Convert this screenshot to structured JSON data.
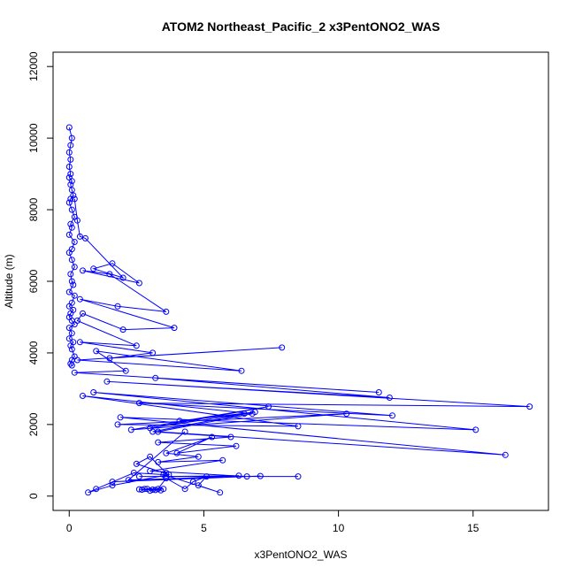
{
  "chart_data": {
    "type": "line",
    "title": "ATOM2 Northeast_Pacific_2 x3PentONO2_WAS",
    "xlabel": "x3PentONO2_WAS",
    "ylabel": "Altitude (m)",
    "xlim": [
      -0.6,
      17.8
    ],
    "ylim": [
      -400,
      12400
    ],
    "xticks": [
      0,
      5,
      10,
      15
    ],
    "yticks": [
      0,
      2000,
      4000,
      6000,
      8000,
      10000,
      12000
    ],
    "grid": false,
    "legend": "none",
    "color": "#0000ff",
    "series": [
      {
        "points": [
          [
            0.0,
            10300
          ],
          [
            0.1,
            10000
          ],
          [
            0.05,
            9800
          ],
          [
            0.0,
            9600
          ],
          [
            0.05,
            9400
          ],
          [
            0.0,
            9200
          ],
          [
            0.05,
            9000
          ],
          [
            0.0,
            8900
          ],
          [
            0.1,
            8800
          ],
          [
            0.05,
            8700
          ],
          [
            0.1,
            8550
          ],
          [
            0.15,
            8400
          ],
          [
            0.05,
            8300
          ],
          [
            0.0,
            8200
          ],
          [
            0.1,
            8000
          ],
          [
            0.2,
            7800
          ],
          [
            0.05,
            7600
          ],
          [
            0.1,
            7500
          ],
          [
            0.0,
            7300
          ],
          [
            0.2,
            7100
          ],
          [
            0.1,
            6900
          ],
          [
            0.0,
            6800
          ],
          [
            0.1,
            6600
          ],
          [
            0.2,
            6400
          ],
          [
            0.05,
            6200
          ],
          [
            0.1,
            6000
          ],
          [
            0.15,
            5900
          ],
          [
            0.0,
            5700
          ],
          [
            0.2,
            5600
          ],
          [
            0.1,
            5400
          ],
          [
            0.0,
            5300
          ],
          [
            0.15,
            5200
          ],
          [
            0.05,
            5100
          ],
          [
            0.0,
            5000
          ],
          [
            0.1,
            4900
          ],
          [
            0.2,
            4800
          ],
          [
            0.0,
            4700
          ],
          [
            0.1,
            4550
          ],
          [
            0.0,
            4400
          ],
          [
            0.15,
            4300
          ],
          [
            0.05,
            4200
          ],
          [
            0.1,
            4100
          ],
          [
            0.2,
            3900
          ],
          [
            0.1,
            3800
          ],
          [
            0.05,
            3700
          ],
          [
            0.1,
            3650
          ]
        ]
      },
      {
        "points": [
          [
            0.2,
            8300
          ],
          [
            0.3,
            7700
          ],
          [
            0.4,
            7250
          ],
          [
            0.6,
            7200
          ],
          [
            2.0,
            6100
          ],
          [
            0.9,
            6350
          ],
          [
            1.6,
            6500
          ],
          [
            2.6,
            5950
          ],
          [
            0.5,
            6300
          ],
          [
            1.5,
            6200
          ],
          [
            3.6,
            5150
          ],
          [
            1.8,
            5300
          ],
          [
            0.4,
            5500
          ],
          [
            3.9,
            4700
          ],
          [
            2.0,
            4650
          ],
          [
            0.5,
            5100
          ],
          [
            0.3,
            4900
          ],
          [
            2.5,
            4200
          ],
          [
            0.4,
            4300
          ],
          [
            3.1,
            4000
          ],
          [
            1.5,
            3850
          ],
          [
            7.9,
            4150
          ],
          [
            0.3,
            3800
          ],
          [
            6.4,
            3500
          ],
          [
            1.0,
            4050
          ],
          [
            2.1,
            3500
          ],
          [
            0.2,
            3450
          ],
          [
            11.5,
            2900
          ],
          [
            3.2,
            3300
          ],
          [
            11.9,
            2750
          ],
          [
            1.4,
            3200
          ],
          [
            17.1,
            2500
          ],
          [
            2.6,
            2600
          ],
          [
            12.0,
            2250
          ],
          [
            0.9,
            2900
          ],
          [
            15.1,
            1850
          ],
          [
            1.9,
            2200
          ],
          [
            16.2,
            1150
          ],
          [
            3.3,
            1800
          ],
          [
            6.8,
            2300
          ],
          [
            0.5,
            2800
          ],
          [
            8.5,
            1950
          ],
          [
            1.8,
            2000
          ],
          [
            10.3,
            2300
          ],
          [
            2.3,
            1850
          ],
          [
            7.4,
            2500
          ],
          [
            3.0,
            1900
          ],
          [
            6.5,
            2300
          ],
          [
            4.1,
            2100
          ],
          [
            6.9,
            2350
          ],
          [
            3.1,
            1800
          ],
          [
            6.0,
            1650
          ],
          [
            3.3,
            1500
          ],
          [
            6.2,
            1400
          ],
          [
            4.0,
            1200
          ],
          [
            5.3,
            1650
          ],
          [
            3.6,
            1200
          ],
          [
            4.8,
            1100
          ],
          [
            3.3,
            950
          ],
          [
            5.7,
            1000
          ],
          [
            3.0,
            700
          ],
          [
            6.6,
            550
          ],
          [
            2.6,
            550
          ],
          [
            8.5,
            550
          ],
          [
            3.6,
            550
          ],
          [
            6.3,
            570
          ],
          [
            1.6,
            400
          ],
          [
            7.1,
            560
          ],
          [
            2.2,
            450
          ],
          [
            4.3,
            1800
          ]
        ]
      },
      {
        "points": [
          [
            3.0,
            150
          ],
          [
            3.5,
            200
          ],
          [
            2.8,
            200
          ],
          [
            2.7,
            180
          ],
          [
            3.1,
            180
          ],
          [
            2.9,
            200
          ],
          [
            3.4,
            160
          ],
          [
            3.2,
            170
          ],
          [
            2.6,
            190
          ],
          [
            3.3,
            200
          ],
          [
            3.6,
            500
          ],
          [
            4.3,
            200
          ],
          [
            4.6,
            400
          ],
          [
            5.1,
            550
          ],
          [
            4.8,
            300
          ],
          [
            5.6,
            100
          ],
          [
            3.5,
            600
          ],
          [
            2.4,
            650
          ],
          [
            1.0,
            200
          ],
          [
            0.7,
            100
          ],
          [
            1.6,
            300
          ],
          [
            3.7,
            600
          ],
          [
            2.5,
            900
          ],
          [
            3.0,
            1100
          ],
          [
            3.6,
            650
          ]
        ]
      }
    ]
  }
}
